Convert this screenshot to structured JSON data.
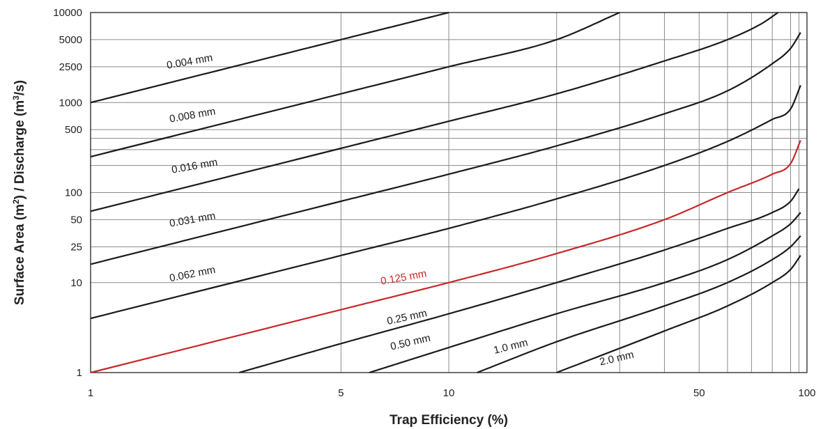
{
  "chart_data": {
    "type": "line",
    "xlabel": "Trap Efficiency (%)",
    "ylabel": "Surface Area (m²) / Discharge (m³/s)",
    "x_scale": "log",
    "y_scale": "log",
    "xlim": [
      1,
      100
    ],
    "ylim": [
      1,
      10000
    ],
    "grid": true,
    "x_ticks": [
      {
        "value": 1,
        "label": "1"
      },
      {
        "value": 5,
        "label": "5"
      },
      {
        "value": 10,
        "label": "10"
      },
      {
        "value": 50,
        "label": "50"
      },
      {
        "value": 100,
        "label": "100"
      }
    ],
    "y_ticks": [
      {
        "value": 1,
        "label": "1"
      },
      {
        "value": 10,
        "label": "10"
      },
      {
        "value": 25,
        "label": "25"
      },
      {
        "value": 50,
        "label": "50"
      },
      {
        "value": 100,
        "label": "100"
      },
      {
        "value": 500,
        "label": "500"
      },
      {
        "value": 1000,
        "label": "1000"
      },
      {
        "value": 2500,
        "label": "2500"
      },
      {
        "value": 5000,
        "label": "5000"
      },
      {
        "value": 10000,
        "label": "10000"
      }
    ],
    "x_grid_values": [
      5,
      10,
      20,
      30,
      40,
      50,
      60,
      70,
      80,
      90,
      95
    ],
    "y_grid_values": [
      10,
      25,
      50,
      100,
      200,
      300,
      400,
      500,
      1000,
      2500,
      5000
    ],
    "series": [
      {
        "name": "0.004 mm",
        "color": "#1a1a1a",
        "points": [
          [
            1,
            1000
          ],
          [
            2,
            2000
          ],
          [
            5,
            5000
          ],
          [
            10,
            10000
          ]
        ]
      },
      {
        "name": "0.008 mm",
        "color": "#1a1a1a",
        "points": [
          [
            1,
            250
          ],
          [
            5,
            1250
          ],
          [
            10,
            2500
          ],
          [
            20,
            5000
          ],
          [
            30,
            10000
          ]
        ]
      },
      {
        "name": "0.016 mm",
        "color": "#1a1a1a",
        "points": [
          [
            1,
            62
          ],
          [
            5,
            310
          ],
          [
            10,
            620
          ],
          [
            20,
            1250
          ],
          [
            40,
            2900
          ],
          [
            60,
            5000
          ],
          [
            75,
            7600
          ],
          [
            83,
            10000
          ]
        ]
      },
      {
        "name": "0.031 mm",
        "color": "#1a1a1a",
        "points": [
          [
            1,
            16
          ],
          [
            5,
            80
          ],
          [
            10,
            160
          ],
          [
            20,
            330
          ],
          [
            40,
            750
          ],
          [
            60,
            1350
          ],
          [
            80,
            2700
          ],
          [
            90,
            4000
          ],
          [
            96,
            6000
          ]
        ]
      },
      {
        "name": "0.062 mm",
        "color": "#1a1a1a",
        "points": [
          [
            1,
            4
          ],
          [
            5,
            20
          ],
          [
            10,
            40
          ],
          [
            20,
            85
          ],
          [
            40,
            200
          ],
          [
            60,
            370
          ],
          [
            80,
            650
          ],
          [
            90,
            850
          ],
          [
            96,
            1550
          ]
        ]
      },
      {
        "name": "0.125 mm",
        "color": "#c62828",
        "points": [
          [
            1,
            1
          ],
          [
            5,
            5
          ],
          [
            10,
            10
          ],
          [
            20,
            21
          ],
          [
            40,
            50
          ],
          [
            60,
            100
          ],
          [
            80,
            160
          ],
          [
            90,
            210
          ],
          [
            96,
            380
          ]
        ]
      },
      {
        "name": "0.25 mm",
        "color": "#1a1a1a",
        "points": [
          [
            2.6,
            1
          ],
          [
            5,
            2.1
          ],
          [
            10,
            4.5
          ],
          [
            20,
            10
          ],
          [
            40,
            23
          ],
          [
            60,
            40
          ],
          [
            80,
            60
          ],
          [
            90,
            80
          ],
          [
            95,
            110
          ]
        ]
      },
      {
        "name": "0.50 mm",
        "color": "#1a1a1a",
        "points": [
          [
            6,
            1
          ],
          [
            10,
            1.9
          ],
          [
            20,
            4.5
          ],
          [
            40,
            10
          ],
          [
            60,
            18
          ],
          [
            80,
            33
          ],
          [
            90,
            45
          ],
          [
            96,
            60
          ]
        ]
      },
      {
        "name": "1.0 mm",
        "color": "#1a1a1a",
        "points": [
          [
            12,
            1
          ],
          [
            20,
            2.2
          ],
          [
            40,
            5.5
          ],
          [
            60,
            10
          ],
          [
            80,
            18
          ],
          [
            90,
            25
          ],
          [
            96,
            33
          ]
        ]
      },
      {
        "name": "2.0 mm",
        "color": "#1a1a1a",
        "points": [
          [
            20,
            1
          ],
          [
            40,
            2.9
          ],
          [
            60,
            5.5
          ],
          [
            80,
            10
          ],
          [
            90,
            14
          ],
          [
            96,
            20
          ]
        ]
      }
    ]
  }
}
